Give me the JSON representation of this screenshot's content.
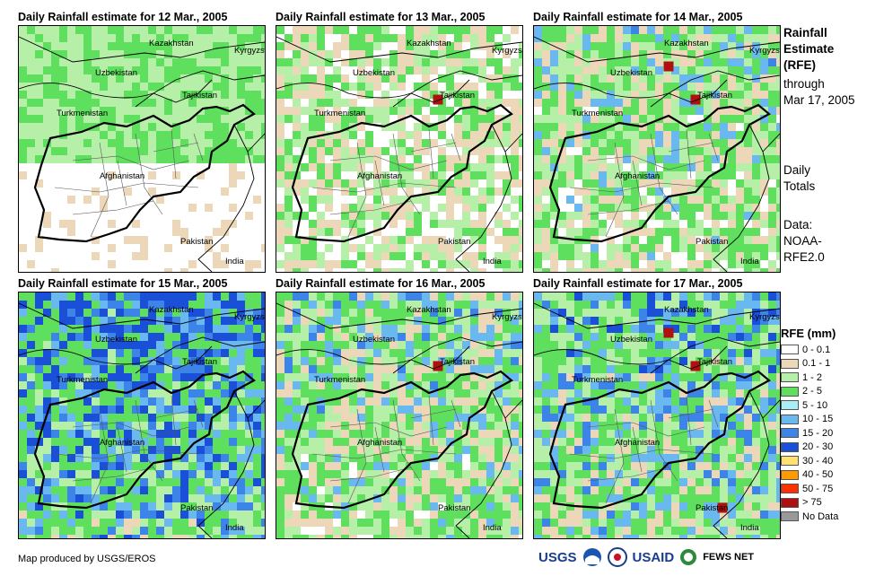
{
  "panels": [
    {
      "title": "Daily Rainfall estimate for 12 Mar., 2005",
      "wetness": 0.05,
      "peak": 0
    },
    {
      "title": "Daily Rainfall estimate for 13 Mar., 2005",
      "wetness": 0.35,
      "peak": 1
    },
    {
      "title": "Daily Rainfall estimate for 14 Mar., 2005",
      "wetness": 0.5,
      "peak": 2
    },
    {
      "title": "Daily Rainfall estimate for 15 Mar., 2005",
      "wetness": 0.8,
      "peak": 0
    },
    {
      "title": "Daily Rainfall estimate for 16 Mar., 2005",
      "wetness": 0.55,
      "peak": 1
    },
    {
      "title": "Daily Rainfall estimate for 17 Mar., 2005",
      "wetness": 0.65,
      "peak": 3
    }
  ],
  "map_labels": {
    "kazakhstan": "Kazakhstan",
    "kyrgyzstan": "Kyrgyzstan",
    "uzbekistan": "Uzbekistan",
    "tajikistan": "Tajikistan",
    "turkmenistan": "Turkmenistan",
    "afghanistan": "Afghanistan",
    "pakistan": "Pakistan",
    "india": "India"
  },
  "sidebar": {
    "title_line1": "Rainfall",
    "title_line2": "Estimate",
    "title_line3": "(RFE)",
    "through": "through",
    "through_date": "Mar 17, 2005",
    "daily1": "Daily",
    "daily2": "Totals",
    "data1": "Data:",
    "data2": "NOAA-",
    "data3": "RFE2.0"
  },
  "legend": {
    "title": "RFE (mm)",
    "items": [
      {
        "label": "0 - 0.1",
        "color": "#ffffff"
      },
      {
        "label": "0.1 - 1",
        "color": "#ecd8b8"
      },
      {
        "label": "1 - 2",
        "color": "#b6f0a8"
      },
      {
        "label": "2 - 5",
        "color": "#5ee05e"
      },
      {
        "label": "5 - 10",
        "color": "#aaeef5"
      },
      {
        "label": "10 - 15",
        "color": "#6ab8f0"
      },
      {
        "label": "15 - 20",
        "color": "#3c84e8"
      },
      {
        "label": "20 - 30",
        "color": "#1a4fd8"
      },
      {
        "label": "30 - 40",
        "color": "#ffe070"
      },
      {
        "label": "40 - 50",
        "color": "#ff9a00"
      },
      {
        "label": "50 - 75",
        "color": "#ff3000"
      },
      {
        "label": "> 75",
        "color": "#b01010"
      },
      {
        "label": "No Data",
        "color": "#999999"
      }
    ]
  },
  "footer": {
    "credit": "Map produced by USGS/EROS",
    "usgs": "USGS",
    "usaid": "USAID",
    "fewsnet": "FEWS NET"
  }
}
